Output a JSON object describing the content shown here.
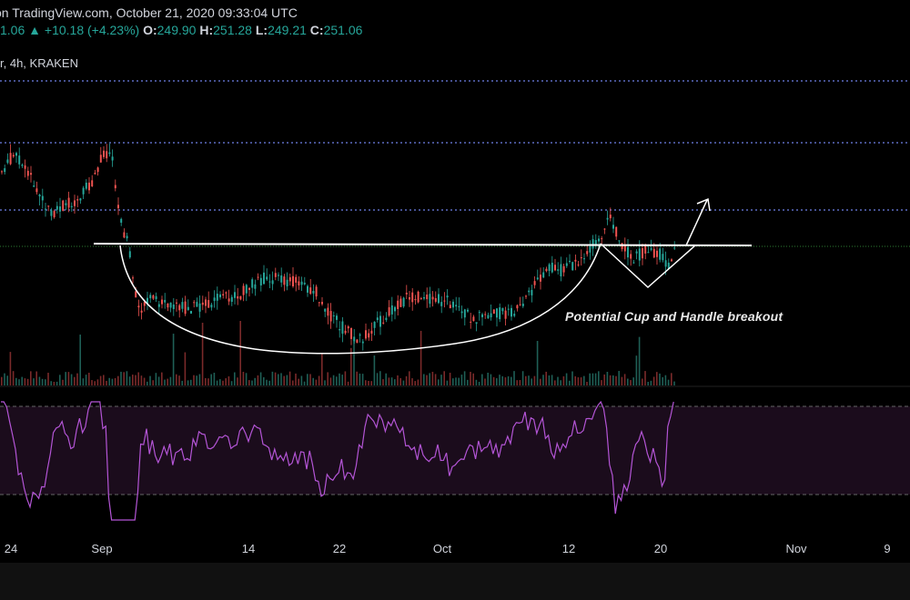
{
  "header": {
    "source_line": "on TradingView.com, October 21, 2020 09:33:04 UTC",
    "last_price": "1.06",
    "change_arrow": "▲",
    "change": "+10.18 (+4.23%)",
    "open_label": "O:",
    "open_value": "249.90",
    "high_label": "H:",
    "high_value": "251.28",
    "low_label": "L:",
    "low_value": "249.21",
    "close_label": "C:",
    "close_value": "251.06",
    "symbol_line": "r, 4h, KRAKEN"
  },
  "annotation": "Potential Cup and Handle breakout",
  "x_axis": {
    "ticks": [
      "24",
      "Sep",
      "14",
      "22",
      "Oct",
      "12",
      "20",
      "Nov",
      "9"
    ]
  },
  "colors": {
    "up": "#26a69a",
    "down": "#ef5350",
    "rsi": "#b455d6",
    "level_line": "#5c6bc0",
    "drawing": "#ffffff"
  },
  "icons": [
    "up-triangle-icon",
    "breakout-arrow-icon"
  ]
}
